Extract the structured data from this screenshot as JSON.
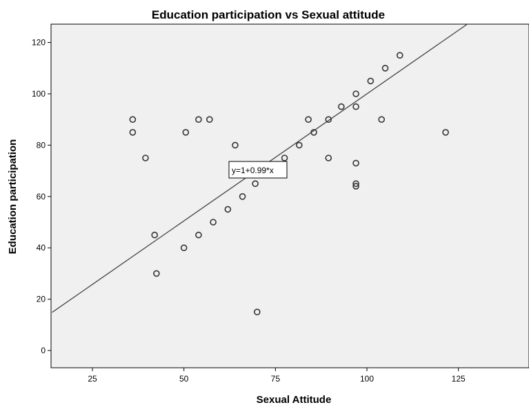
{
  "chart_data": {
    "type": "scatter",
    "title": "Education participation vs Sexual attitude",
    "xlabel": "Sexual Attitude",
    "ylabel": "Education participation",
    "xlim": [
      14,
      145
    ],
    "ylim": [
      -8,
      127
    ],
    "xticks": [
      25,
      50,
      75,
      100,
      125
    ],
    "yticks": [
      0,
      20,
      40,
      60,
      80,
      100,
      120
    ],
    "grid": false,
    "fit_line": {
      "intercept": 1,
      "slope": 0.99,
      "label": "y=1+0.99*x"
    },
    "points": [
      [
        36,
        90
      ],
      [
        36,
        85
      ],
      [
        39.5,
        75
      ],
      [
        42,
        45
      ],
      [
        42.5,
        30
      ],
      [
        50,
        40
      ],
      [
        50.5,
        85
      ],
      [
        54,
        90
      ],
      [
        54,
        45
      ],
      [
        57,
        90
      ],
      [
        58,
        50
      ],
      [
        62,
        55
      ],
      [
        64,
        80
      ],
      [
        66,
        60
      ],
      [
        69.5,
        65
      ],
      [
        70,
        15
      ],
      [
        77.5,
        75
      ],
      [
        81.5,
        80
      ],
      [
        84,
        90
      ],
      [
        85.5,
        85
      ],
      [
        89.5,
        90
      ],
      [
        89.5,
        75
      ],
      [
        93,
        95
      ],
      [
        97,
        100
      ],
      [
        97,
        95
      ],
      [
        97,
        73
      ],
      [
        97,
        65
      ],
      [
        97,
        64
      ],
      [
        101,
        105
      ],
      [
        104,
        90
      ],
      [
        105,
        110
      ],
      [
        109,
        115
      ],
      [
        121.5,
        85
      ]
    ],
    "colors": {
      "plot_background": "#f0f0f0",
      "marker": "#333333",
      "fit_line": "#444444"
    }
  }
}
